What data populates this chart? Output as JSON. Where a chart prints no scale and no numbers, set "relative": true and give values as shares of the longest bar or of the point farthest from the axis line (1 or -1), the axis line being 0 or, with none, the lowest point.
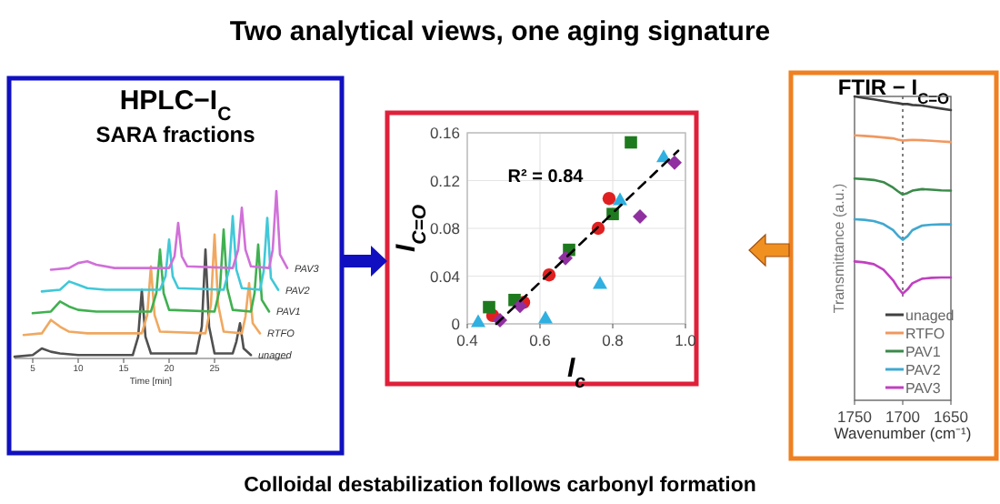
{
  "chart_data": [
    {
      "type": "line",
      "title": "HPLC−I$_{C}$",
      "subtitle": "SARA fractions",
      "relative": true,
      "tick_labels": "x",
      "xlabel": "Time [min]",
      "xlim": [
        3,
        33
      ],
      "xticks": [
        5,
        10,
        15,
        20,
        25
      ],
      "series": [
        {
          "name": "unaged",
          "color": "#505050",
          "x": [
            3,
            5,
            6,
            7,
            8,
            10,
            16,
            16.6,
            17,
            17.4,
            18,
            23,
            23.6,
            24,
            24.4,
            25,
            27,
            27.4,
            27.8,
            28.2,
            29
          ],
          "values": [
            0.01,
            0.02,
            0.06,
            0.04,
            0.03,
            0.02,
            0.02,
            0.13,
            0.41,
            0.13,
            0.03,
            0.03,
            0.19,
            0.65,
            0.19,
            0.03,
            0.03,
            0.1,
            0.21,
            0.06,
            0.02
          ]
        },
        {
          "name": "RTFO",
          "color": "#f0a860",
          "x": [
            4,
            6,
            7,
            8,
            9,
            11,
            17,
            17.6,
            18,
            18.4,
            19,
            24,
            24.6,
            25,
            25.4,
            26,
            28,
            28.4,
            28.8,
            29.2,
            30
          ],
          "values": [
            0.14,
            0.15,
            0.23,
            0.19,
            0.16,
            0.15,
            0.15,
            0.26,
            0.55,
            0.26,
            0.16,
            0.15,
            0.32,
            0.74,
            0.32,
            0.16,
            0.15,
            0.25,
            0.45,
            0.21,
            0.15
          ]
        },
        {
          "name": "PAV1",
          "color": "#40b050",
          "x": [
            5,
            7,
            8,
            9,
            10,
            12,
            18,
            18.6,
            19,
            19.4,
            20,
            25,
            25.6,
            26,
            26.4,
            27,
            29,
            29.4,
            29.8,
            30.2,
            31
          ],
          "values": [
            0.27,
            0.28,
            0.34,
            0.31,
            0.29,
            0.28,
            0.28,
            0.39,
            0.65,
            0.39,
            0.29,
            0.28,
            0.42,
            0.77,
            0.42,
            0.29,
            0.28,
            0.39,
            0.68,
            0.35,
            0.28
          ]
        },
        {
          "name": "PAV2",
          "color": "#40c8d8",
          "x": [
            6,
            8,
            9,
            10,
            11,
            13,
            19,
            19.6,
            20,
            20.4,
            21,
            26,
            26.6,
            27,
            27.4,
            28,
            30,
            30.4,
            30.8,
            31.2,
            32
          ],
          "values": [
            0.4,
            0.41,
            0.46,
            0.44,
            0.42,
            0.41,
            0.41,
            0.49,
            0.71,
            0.49,
            0.42,
            0.41,
            0.53,
            0.85,
            0.53,
            0.42,
            0.41,
            0.52,
            0.84,
            0.48,
            0.41
          ]
        },
        {
          "name": "PAV3",
          "color": "#d070d8",
          "x": [
            7,
            9,
            10,
            11,
            12,
            14,
            20,
            20.6,
            21,
            21.4,
            22,
            27,
            27.6,
            28,
            28.4,
            29,
            31,
            31.4,
            31.8,
            32.2,
            33
          ],
          "values": [
            0.53,
            0.54,
            0.57,
            0.58,
            0.56,
            0.54,
            0.54,
            0.61,
            0.81,
            0.61,
            0.55,
            0.54,
            0.65,
            0.9,
            0.65,
            0.55,
            0.54,
            0.65,
            1,
            0.62,
            0.54
          ]
        }
      ]
    },
    {
      "type": "scatter",
      "xlabel": "I$_{c}$",
      "ylabel": "I$_{C=O}$",
      "xlim": [
        0.4,
        1.0
      ],
      "xticks": [
        0.4,
        0.6,
        0.8,
        {
          "value": 1.0,
          "label": "1.0"
        }
      ],
      "ylim": [
        0,
        0.16
      ],
      "yticks": [
        0,
        0.04,
        0.08,
        0.12,
        0.16
      ],
      "grid": true,
      "annotations": [
        "Two analytical views, one aging signature",
        "R² = 0.84",
        "Colloidal destabilization follows carbonyl formation"
      ],
      "series": [
        {
          "color": "#e02020",
          "marker": "circle",
          "x": [
            0.47,
            0.555,
            0.625,
            0.76,
            0.79
          ],
          "values": [
            0.007,
            0.018,
            0.041,
            0.08,
            0.105
          ]
        },
        {
          "color": "#1e7a1e",
          "marker": "square",
          "x": [
            0.46,
            0.53,
            0.68,
            0.8,
            0.85
          ],
          "values": [
            0.014,
            0.02,
            0.062,
            0.092,
            0.152
          ]
        },
        {
          "color": "#30b0e0",
          "marker": "triangle",
          "x": [
            0.43,
            0.615,
            0.765,
            0.82,
            0.94
          ],
          "values": [
            0.002,
            0.005,
            0.034,
            0.104,
            0.14
          ]
        },
        {
          "color": "#9030a0",
          "marker": "diamond",
          "x": [
            0.49,
            0.545,
            0.67,
            0.875,
            0.97
          ],
          "values": [
            0.003,
            0.015,
            0.055,
            0.09,
            0.135
          ]
        },
        {
          "type": "line",
          "color": "#000000",
          "marker": "none",
          "line_style": "dashed",
          "x": [
            0.48,
            0.98
          ],
          "values": [
            0,
            0.145
          ]
        }
      ]
    },
    {
      "type": "line",
      "title": "FTIR − I$_{C=O}$",
      "relative": true,
      "tick_labels": "x",
      "xlabel": "Wavenumber  (cm⁻¹)",
      "ylabel": "Transmittance (a.u.)",
      "xlim": [
        1750,
        1650
      ],
      "xticks": [
        1750,
        1700,
        1650
      ],
      "legend": "bottom right",
      "ref_lines": [
        {
          "axis": "x",
          "value": 1700,
          "line_style": "dotted",
          "color": "#606060"
        }
      ],
      "x": [
        1750,
        1740,
        1730,
        1720,
        1710,
        1705,
        1700,
        1695,
        1690,
        1680,
        1670,
        1660,
        1650
      ],
      "series": [
        {
          "name": "unaged",
          "color": "#404040",
          "values": [
            1,
            0.995,
            0.99,
            0.985,
            0.98,
            0.978,
            0.975,
            0.975,
            0.972,
            0.97,
            0.965,
            0.96,
            0.955
          ]
        },
        {
          "name": "RTFO",
          "color": "#f09860",
          "values": [
            0.872,
            0.87,
            0.868,
            0.865,
            0.862,
            0.858,
            0.855,
            0.856,
            0.857,
            0.856,
            0.854,
            0.852,
            0.85
          ]
        },
        {
          "name": "PAV1",
          "color": "#3a8a4a",
          "values": [
            0.73,
            0.728,
            0.725,
            0.718,
            0.7,
            0.688,
            0.677,
            0.682,
            0.69,
            0.695,
            0.693,
            0.691,
            0.69
          ]
        },
        {
          "name": "PAV2",
          "color": "#40a8d0",
          "values": [
            0.596,
            0.594,
            0.59,
            0.58,
            0.56,
            0.542,
            0.528,
            0.54,
            0.56,
            0.575,
            0.578,
            0.579,
            0.579
          ]
        },
        {
          "name": "PAV3",
          "color": "#c040c0",
          "values": [
            0.457,
            0.454,
            0.448,
            0.43,
            0.395,
            0.37,
            0.351,
            0.365,
            0.385,
            0.4,
            0.403,
            0.404,
            0.404
          ]
        }
      ]
    }
  ]
}
